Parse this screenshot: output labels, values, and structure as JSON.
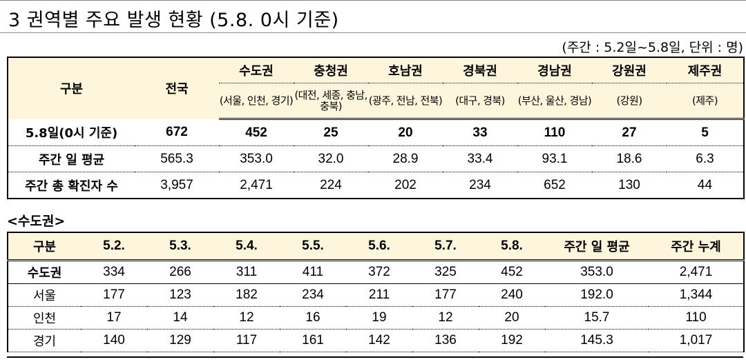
{
  "title": "3  권역별 주요 발생 현황 (5.8. 0시 기준)",
  "unit_note": "(주간 : 5.2일~5.8일, 단위 : 명)",
  "summary_table": {
    "header_gubun": "구분",
    "header_total": "전국",
    "regions": [
      {
        "name": "수도권",
        "sub": "(서울, 인천, 경기)"
      },
      {
        "name": "충청권",
        "sub": "(대전, 세종, 충남, 충북)"
      },
      {
        "name": "호남권",
        "sub": "(광주, 전남, 전북)"
      },
      {
        "name": "경북권",
        "sub": "(대구, 경북)"
      },
      {
        "name": "경남권",
        "sub": "(부산, 울산, 경남)"
      },
      {
        "name": "강원권",
        "sub": "(강원)"
      },
      {
        "name": "제주권",
        "sub": "(제주)"
      }
    ],
    "rows": [
      {
        "label": "5.8일(0시 기준)",
        "values": [
          "672",
          "452",
          "25",
          "20",
          "33",
          "110",
          "27",
          "5"
        ]
      },
      {
        "label": "주간 일 평균",
        "values": [
          "565.3",
          "353.0",
          "32.0",
          "28.9",
          "33.4",
          "93.1",
          "18.6",
          "6.3"
        ]
      },
      {
        "label": "주간 총 확진자 수",
        "values": [
          "3,957",
          "2,471",
          "224",
          "202",
          "234",
          "652",
          "130",
          "44"
        ]
      }
    ]
  },
  "sudogwon_section": {
    "title": "<수도권>",
    "headers": [
      "구분",
      "5.2.",
      "5.3.",
      "5.4.",
      "5.5.",
      "5.6.",
      "5.7.",
      "5.8.",
      "주간 일 평균",
      "주간 누계"
    ],
    "rows": [
      {
        "label": "수도권",
        "values": [
          "334",
          "266",
          "311",
          "411",
          "372",
          "325",
          "452",
          "353.0",
          "2,471"
        ]
      },
      {
        "label": "서울",
        "values": [
          "177",
          "123",
          "182",
          "234",
          "211",
          "177",
          "240",
          "192.0",
          "1,344"
        ]
      },
      {
        "label": "인천",
        "values": [
          "17",
          "14",
          "12",
          "16",
          "19",
          "12",
          "20",
          "15.7",
          "110"
        ]
      },
      {
        "label": "경기",
        "values": [
          "140",
          "129",
          "117",
          "161",
          "142",
          "136",
          "192",
          "145.3",
          "1,017"
        ]
      }
    ]
  }
}
